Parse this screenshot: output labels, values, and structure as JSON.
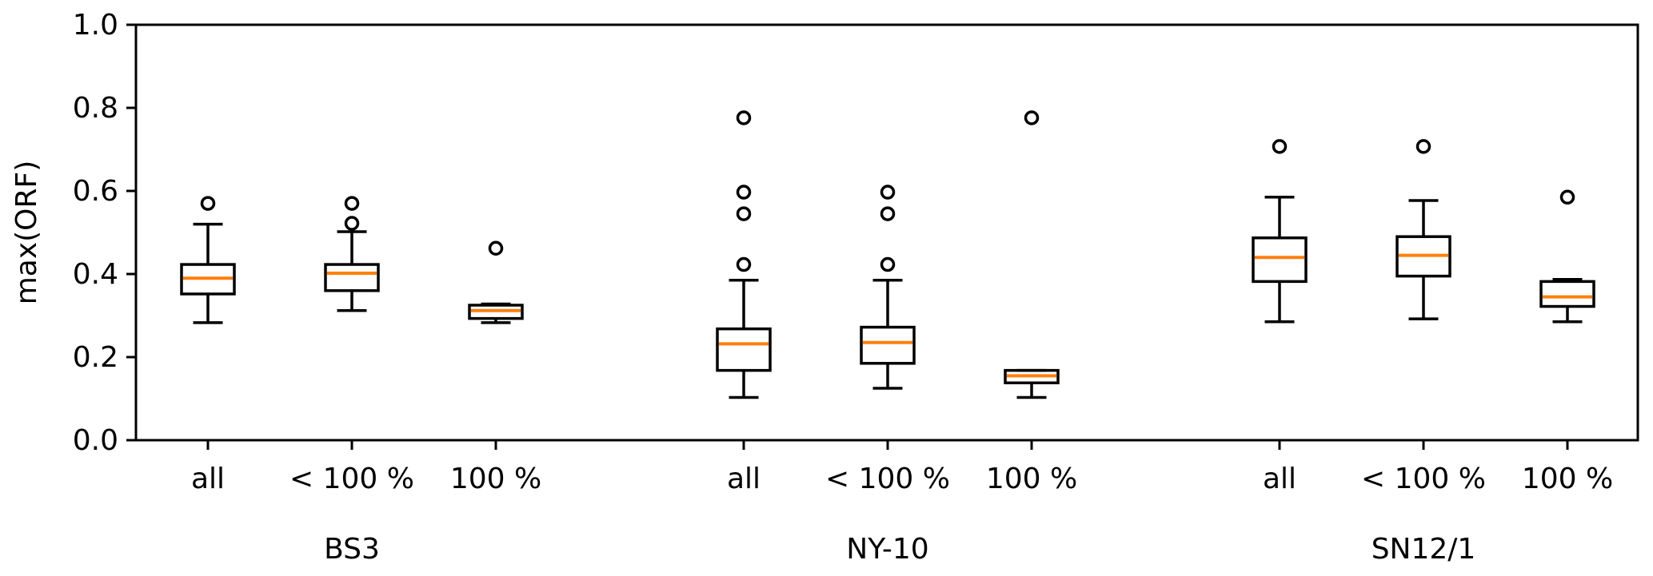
{
  "chart_data": {
    "type": "box",
    "ylabel": "max(ORF)",
    "ylim": [
      0.0,
      1.0
    ],
    "yticks": [
      "0.0",
      "0.2",
      "0.4",
      "0.6",
      "0.8",
      "1.0"
    ],
    "grid": false,
    "colors": {
      "box": "#000000",
      "median": "#ff7f0e"
    },
    "groups": [
      {
        "label": "BS3",
        "boxes": [
          {
            "label": "all",
            "whisker_low": 0.283,
            "q1": 0.352,
            "median": 0.39,
            "q3": 0.423,
            "whisker_high": 0.52,
            "outliers": [
              0.57
            ]
          },
          {
            "label": "< 100 %",
            "whisker_low": 0.312,
            "q1": 0.36,
            "median": 0.402,
            "q3": 0.423,
            "whisker_high": 0.502,
            "outliers": [
              0.522,
              0.57
            ]
          },
          {
            "label": "100 %",
            "whisker_low": 0.283,
            "q1": 0.293,
            "median": 0.312,
            "q3": 0.325,
            "whisker_high": 0.328,
            "outliers": [
              0.462
            ]
          }
        ]
      },
      {
        "label": "NY-10",
        "boxes": [
          {
            "label": "all",
            "whisker_low": 0.103,
            "q1": 0.168,
            "median": 0.232,
            "q3": 0.268,
            "whisker_high": 0.385,
            "outliers": [
              0.423,
              0.545,
              0.597,
              0.776
            ]
          },
          {
            "label": "< 100 %",
            "whisker_low": 0.125,
            "q1": 0.185,
            "median": 0.235,
            "q3": 0.272,
            "whisker_high": 0.385,
            "outliers": [
              0.423,
              0.545,
              0.597
            ]
          },
          {
            "label": "100 %",
            "whisker_low": 0.103,
            "q1": 0.138,
            "median": 0.155,
            "q3": 0.168,
            "whisker_high": 0.168,
            "outliers": [
              0.776
            ]
          }
        ]
      },
      {
        "label": "SN12/1",
        "boxes": [
          {
            "label": "all",
            "whisker_low": 0.285,
            "q1": 0.382,
            "median": 0.44,
            "q3": 0.487,
            "whisker_high": 0.585,
            "outliers": [
              0.707
            ]
          },
          {
            "label": "< 100 %",
            "whisker_low": 0.292,
            "q1": 0.395,
            "median": 0.445,
            "q3": 0.49,
            "whisker_high": 0.577,
            "outliers": [
              0.707
            ]
          },
          {
            "label": "100 %",
            "whisker_low": 0.285,
            "q1": 0.322,
            "median": 0.345,
            "q3": 0.382,
            "whisker_high": 0.387,
            "outliers": [
              0.585
            ]
          }
        ]
      }
    ]
  }
}
